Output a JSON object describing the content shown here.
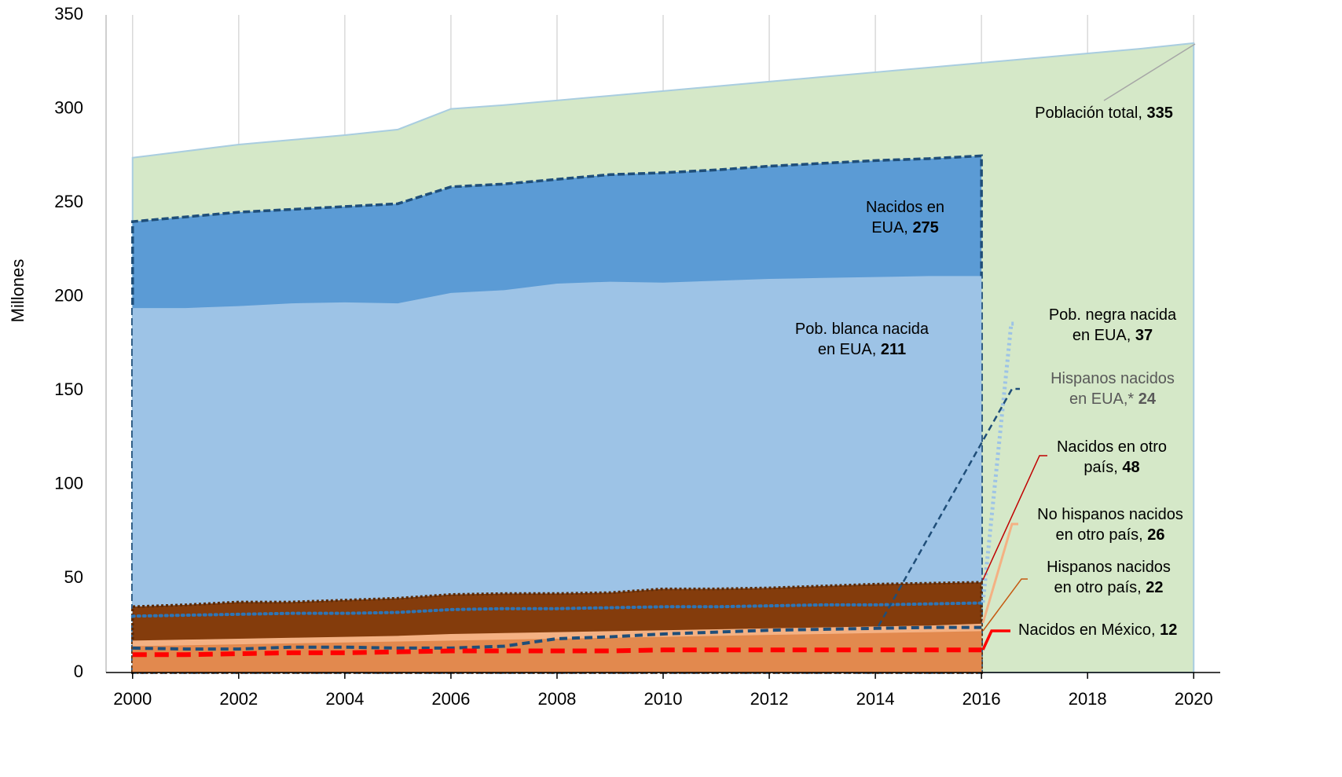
{
  "chart_data": {
    "type": "area",
    "y_axis_label": "Millones",
    "x": [
      2000,
      2001,
      2002,
      2003,
      2004,
      2005,
      2006,
      2007,
      2008,
      2009,
      2010,
      2011,
      2012,
      2013,
      2014,
      2015,
      2016,
      2017,
      2018,
      2019,
      2020
    ],
    "xlim": [
      1999.5,
      2020.5
    ],
    "xticks": [
      2000,
      2002,
      2004,
      2006,
      2008,
      2010,
      2012,
      2014,
      2016,
      2018,
      2020
    ],
    "ylim": [
      0,
      350
    ],
    "yticks": [
      0,
      50,
      100,
      150,
      200,
      250,
      300,
      350
    ],
    "grid": "x",
    "series": [
      {
        "label_lines": [
          "Población total, "
        ],
        "kind": "area",
        "color": "#d5e8c8",
        "stroke": "#a9cde0",
        "values": [
          274,
          277.5,
          281,
          283.5,
          286,
          289,
          300,
          302,
          304.5,
          307,
          309.5,
          312,
          314.5,
          317,
          319.5,
          322,
          324.5,
          327,
          329.5,
          332,
          335
        ]
      },
      {
        "label_lines": [
          "Nacidos en",
          "EUA, "
        ],
        "kind": "area",
        "color": "#5b9bd5",
        "stroke": "#1f4e79",
        "values": [
          240,
          242.5,
          245,
          246.5,
          248,
          249.5,
          258.5,
          260,
          262.5,
          265,
          266,
          267.5,
          269.5,
          271,
          272.5,
          273.5,
          275,
          null,
          null,
          null,
          null
        ]
      },
      {
        "label_lines": [
          "Pob. blanca nacida",
          "en EUA, "
        ],
        "kind": "area",
        "color": "#9dc3e6",
        "values": [
          194,
          194,
          195,
          196.5,
          197,
          196.5,
          202,
          203.5,
          207,
          208,
          207.5,
          208.5,
          209.5,
          210,
          210.5,
          211,
          211,
          null,
          null,
          null,
          null
        ]
      },
      {
        "label_lines": [
          "Nacidos en otro",
          "país, "
        ],
        "kind": "area",
        "color": "#843c0c",
        "stroke": "#5a2a08",
        "values": [
          35,
          36,
          37.5,
          37.5,
          38.5,
          39.5,
          41.5,
          42,
          42,
          42.5,
          44.5,
          44.5,
          45,
          46,
          47,
          47.5,
          48,
          null,
          null,
          null,
          null
        ]
      },
      {
        "label_lines": [
          "No hispanos nacidos",
          "en otro país, "
        ],
        "kind": "area",
        "color": "#f4b183",
        "values": [
          17,
          17.5,
          18,
          18.5,
          19,
          19.5,
          20.5,
          21,
          21.5,
          22,
          22.5,
          23,
          23.5,
          24,
          24.5,
          25,
          26,
          null,
          null,
          null,
          null
        ]
      },
      {
        "label_lines": [
          "Hispanos nacidos",
          "en otro país, "
        ],
        "kind": "area",
        "color": "#e2894e",
        "values": [
          14,
          14.5,
          15,
          15.5,
          16,
          16.5,
          17,
          17.5,
          18,
          18.5,
          19,
          19.5,
          20,
          20.5,
          21,
          21.5,
          22,
          null,
          null,
          null,
          null
        ]
      },
      {
        "label_lines": [
          "Pob. negra nacida",
          "en EUA, "
        ],
        "kind": "line",
        "color": "#2e75b6",
        "dash": "dotted",
        "values": [
          30,
          30.5,
          31,
          31.5,
          31.5,
          32,
          33.5,
          34,
          34,
          34.5,
          35,
          35,
          35.5,
          36,
          36,
          36.5,
          37,
          null,
          null,
          null,
          null
        ]
      },
      {
        "label_lines": [
          "Hispanos nacidos",
          "en EUA,* "
        ],
        "kind": "line",
        "color": "#1f4e79",
        "dash": "dashed",
        "values": [
          13,
          12.5,
          12.5,
          13.5,
          13.5,
          13,
          13,
          14,
          18,
          19,
          20.5,
          21.5,
          22.5,
          23,
          23.5,
          24,
          24,
          null,
          null,
          null,
          null
        ]
      },
      {
        "label_lines": [
          "Nacidos en México, "
        ],
        "kind": "line",
        "color": "#ff0000",
        "dash": "dashed-thick",
        "values": [
          9.5,
          9.5,
          10,
          10.5,
          10.5,
          11,
          11.5,
          11.5,
          11.5,
          11.5,
          12,
          12,
          12,
          12,
          12,
          12,
          12,
          null,
          null,
          null,
          null
        ]
      }
    ]
  }
}
